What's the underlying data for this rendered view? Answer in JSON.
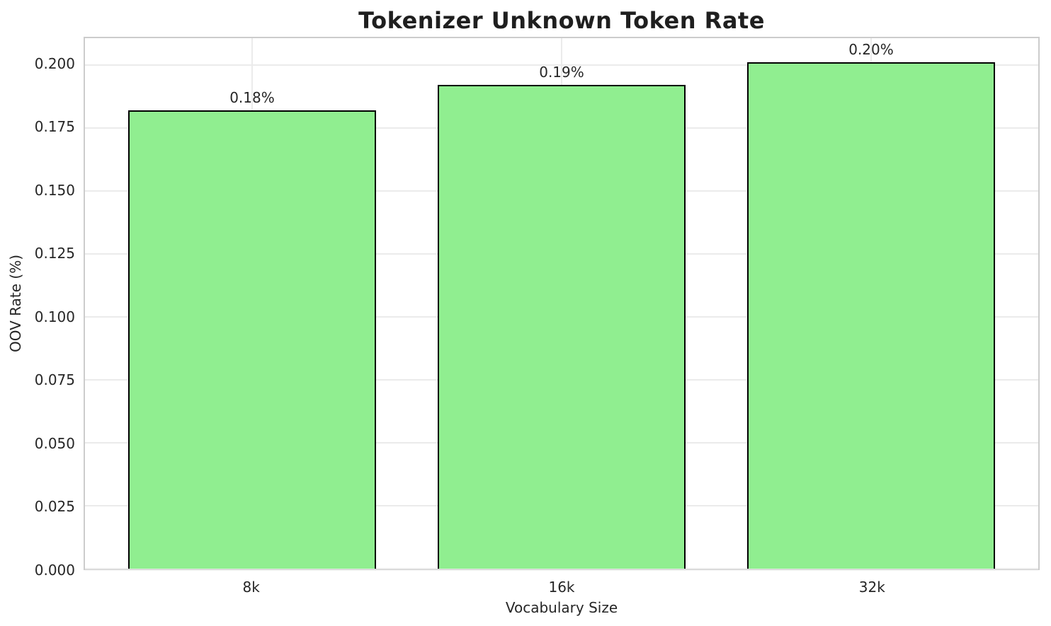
{
  "title": "Tokenizer Unknown Token Rate",
  "colors": {
    "bar_fill": "#90EE90",
    "bar_edge": "#000000",
    "grid": "#ebebeb",
    "spine": "#cccccc",
    "text": "#262626",
    "background": "#ffffff"
  },
  "chart_data": {
    "type": "bar",
    "title": "Tokenizer Unknown Token Rate",
    "xlabel": "Vocabulary Size",
    "ylabel": "OOV Rate (%)",
    "categories": [
      "8k",
      "16k",
      "32k"
    ],
    "values": [
      0.182,
      0.192,
      0.201
    ],
    "bar_labels": [
      "0.18%",
      "0.19%",
      "0.20%"
    ],
    "yticks": [
      0.0,
      0.025,
      0.05,
      0.075,
      0.1,
      0.125,
      0.15,
      0.175,
      0.2
    ],
    "ytick_labels": [
      "0.000",
      "0.025",
      "0.050",
      "0.075",
      "0.100",
      "0.125",
      "0.150",
      "0.175",
      "0.200"
    ],
    "ylim": [
      0,
      0.2106
    ],
    "xlim": [
      -0.54,
      2.54
    ],
    "bar_width": 0.8,
    "grid": "both",
    "legend_position": "none"
  }
}
